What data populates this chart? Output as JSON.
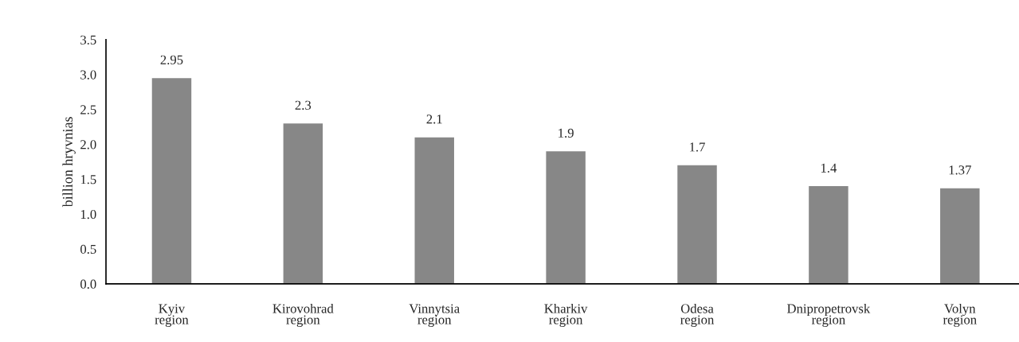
{
  "chart_data": {
    "type": "bar",
    "ylabel": "billion hryvnias",
    "categories": [
      "Kyiv\nregion",
      "Kirovohrad\nregion",
      "Vinnytsia\nregion",
      "Kharkiv\nregion",
      "Odesa\nregion",
      "Dnipropetrovsk\nregion",
      "Volyn\nregion"
    ],
    "values": [
      2.95,
      2.3,
      2.1,
      1.9,
      1.7,
      1.4,
      1.37
    ],
    "color": "#878787",
    "ylim": [
      0,
      3.5
    ],
    "yticks": [
      {
        "value": 0,
        "label": "0.0"
      },
      0.5,
      {
        "value": 1,
        "label": "1.0"
      },
      1.5,
      {
        "value": 2,
        "label": "2.0"
      },
      2.5,
      {
        "value": 3,
        "label": "3.0"
      },
      3.5
    ],
    "data_labels": true,
    "grid": false,
    "legend": false
  }
}
